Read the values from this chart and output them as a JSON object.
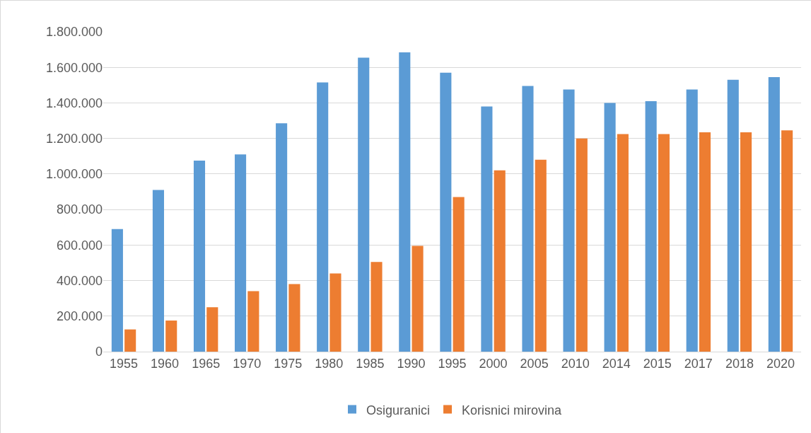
{
  "chart_data": {
    "type": "bar",
    "categories": [
      "1955",
      "1960",
      "1965",
      "1970",
      "1975",
      "1980",
      "1985",
      "1990",
      "1995",
      "2000",
      "2005",
      "2010",
      "2014",
      "2015",
      "2017",
      "2018",
      "2020"
    ],
    "series": [
      {
        "name": "Osiguranici",
        "color": "#5b9bd5",
        "values": [
          690000,
          910000,
          1075000,
          1110000,
          1285000,
          1515000,
          1655000,
          1685000,
          1570000,
          1380000,
          1495000,
          1475000,
          1400000,
          1410000,
          1475000,
          1530000,
          1545000
        ]
      },
      {
        "name": "Korisnici mirovina",
        "color": "#ed7d31",
        "values": [
          125000,
          175000,
          250000,
          340000,
          380000,
          440000,
          505000,
          595000,
          870000,
          1020000,
          1080000,
          1200000,
          1225000,
          1225000,
          1235000,
          1235000,
          1245000
        ]
      }
    ],
    "ylim": [
      0,
      1800000
    ],
    "yticks": [
      0,
      {
        "value": 200000,
        "label": "200.000"
      },
      {
        "value": 400000,
        "label": "400.000"
      },
      {
        "value": 600000,
        "label": "600.000"
      },
      {
        "value": 800000,
        "label": "800.000"
      },
      {
        "value": 1000000,
        "label": "1.000.000"
      },
      {
        "value": 1200000,
        "label": "1.200.000"
      },
      {
        "value": 1400000,
        "label": "1.400.000"
      },
      {
        "value": 1600000,
        "label": "1.600.000"
      },
      {
        "value": 1800000,
        "label": "1.800.000"
      }
    ],
    "grid": "y",
    "legend": "bottom"
  }
}
